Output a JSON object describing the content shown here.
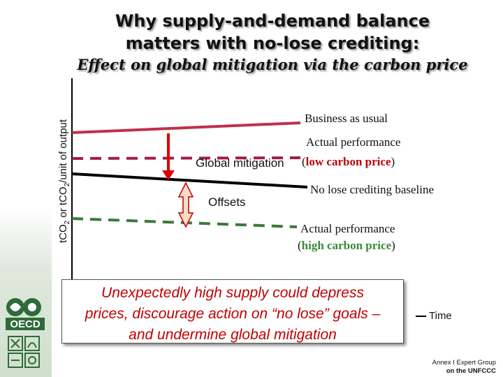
{
  "slide": {
    "title_line1": "Why supply-and-demand balance",
    "title_line2": "matters with no-lose crediting:",
    "subtitle": "Effect on global mitigation via the carbon price",
    "y_axis_label_pre": "tCO",
    "y_axis_label_sub": "2",
    "y_axis_label_post": " or tCO",
    "y_axis_label_sub2": "2",
    "y_axis_label_end": "/unit of output",
    "x_axis_label": "Time"
  },
  "labels": {
    "bau": "Business as usual",
    "actual_low_line1": "Actual performance",
    "actual_low_open": "(",
    "actual_low_hl": "low carbon price",
    "actual_low_close": ")",
    "global_mitigation": "Global mitigation",
    "baseline": "No lose crediting baseline",
    "offsets": "Offsets",
    "actual_high_line1": "Actual performance",
    "actual_high_open": "(",
    "actual_high_hl": "high carbon price",
    "actual_high_close": ")"
  },
  "note": {
    "line1": "Unexpectedly high supply could depress",
    "line2": "prices, discourage action on “no lose” goals –",
    "line3": "and undermine global mitigation"
  },
  "branding": {
    "logo_text": "OECD",
    "footer_line1": "Annex I Expert Group",
    "footer_line2": "on the UNFCCC"
  },
  "colors": {
    "bau": "#c0304a",
    "actual_low": "#a01e46",
    "baseline": "#000000",
    "actual_high": "#3a7a3a",
    "arrow_red": "#e00000",
    "arrow_fill": "#f9dcc8",
    "arrow_stroke": "#c00000",
    "logo_green": "#2f6b3a"
  }
}
